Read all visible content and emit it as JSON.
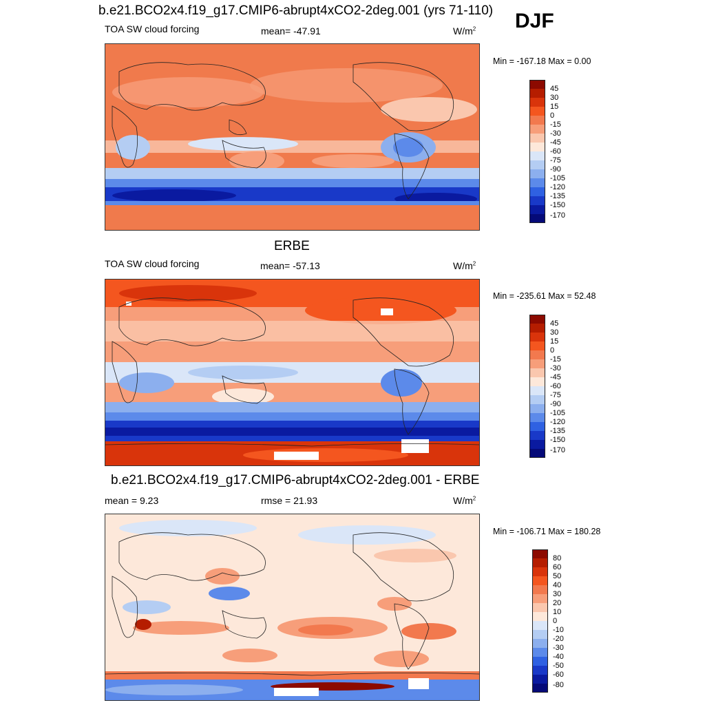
{
  "season": "DJF",
  "panels": [
    {
      "title": "b.e21.BCO2x4.f19_g17.CMIP6-abrupt4xCO2-2deg.001 (yrs 71-110)",
      "left_label": "TOA SW cloud forcing",
      "center_label": "mean= -47.91",
      "units": "W/m",
      "units_sup": "2",
      "minmax": "Min = -167.18 Max =   0.00",
      "colorbar_labels": [
        "45",
        "30",
        "15",
        "0",
        "-15",
        "-30",
        "-45",
        "-60",
        "-75",
        "-90",
        "-105",
        "-120",
        "-135",
        "-150",
        "-170"
      ],
      "colorbar_colors": [
        "#8c0a00",
        "#b51d00",
        "#d9340b",
        "#f4561f",
        "#f2794e",
        "#f79e7a",
        "#fac7ae",
        "#fde8da",
        "#dae6f8",
        "#b4cdf3",
        "#8cafee",
        "#5c8aea",
        "#2f61e2",
        "#1939c8",
        "#0a1aa0",
        "#050a78"
      ]
    },
    {
      "title": "ERBE",
      "left_label": "TOA SW cloud forcing",
      "center_label": "mean= -57.13",
      "units": "W/m",
      "units_sup": "2",
      "minmax": "Min = -235.61 Max =  52.48",
      "colorbar_labels": [
        "45",
        "30",
        "15",
        "0",
        "-15",
        "-30",
        "-45",
        "-60",
        "-75",
        "-90",
        "-105",
        "-120",
        "-135",
        "-150",
        "-170"
      ],
      "colorbar_colors": [
        "#8c0a00",
        "#b51d00",
        "#d9340b",
        "#f4561f",
        "#f2794e",
        "#f79e7a",
        "#fac7ae",
        "#fde8da",
        "#dae6f8",
        "#b4cdf3",
        "#8cafee",
        "#5c8aea",
        "#2f61e2",
        "#1939c8",
        "#0a1aa0",
        "#050a78"
      ]
    },
    {
      "title": "b.e21.BCO2x4.f19_g17.CMIP6-abrupt4xCO2-2deg.001 - ERBE",
      "left_label": "mean =   9.23",
      "center_label": "rmse =  21.93",
      "units": "W/m",
      "units_sup": "2",
      "minmax": "Min = -106.71 Max = 180.28",
      "colorbar_labels": [
        "80",
        "60",
        "50",
        "40",
        "30",
        "20",
        "10",
        "0",
        "-10",
        "-20",
        "-30",
        "-40",
        "-50",
        "-60",
        "-80"
      ],
      "colorbar_colors": [
        "#8c0a00",
        "#b51d00",
        "#d9340b",
        "#f4561f",
        "#f2794e",
        "#f79e7a",
        "#fac7ae",
        "#fde8da",
        "#dae6f8",
        "#b4cdf3",
        "#8cafee",
        "#5c8aea",
        "#2f61e2",
        "#1939c8",
        "#0a1aa0",
        "#050a78"
      ]
    }
  ]
}
